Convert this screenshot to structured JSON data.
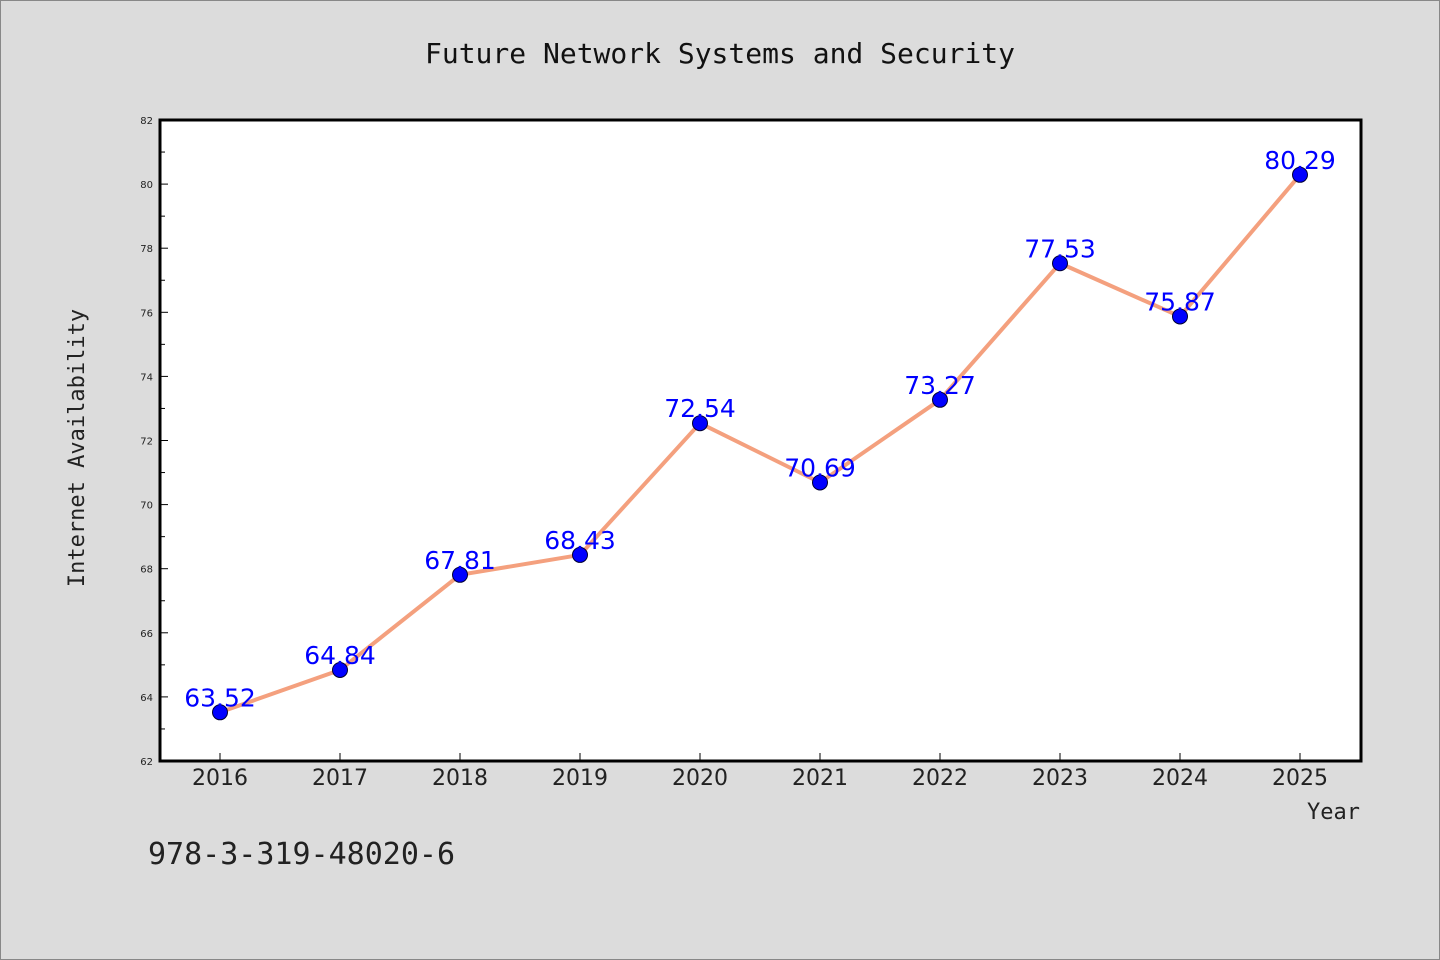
{
  "chart_data": {
    "type": "line",
    "title": "Future Network Systems and Security",
    "xlabel": "Year",
    "ylabel": "Internet Availability",
    "categories": [
      "2016",
      "2017",
      "2018",
      "2019",
      "2020",
      "2021",
      "2022",
      "2023",
      "2024",
      "2025"
    ],
    "series": [
      {
        "values": [
          63.52,
          64.84,
          67.81,
          68.43,
          72.54,
          70.69,
          73.27,
          77.53,
          75.87,
          80.29
        ]
      }
    ],
    "data_labels": [
      "63.52",
      "64.84",
      "67.81",
      "68.43",
      "72.54",
      "70.69",
      "73.27",
      "77.53",
      "75.87",
      "80.29"
    ],
    "ylim": [
      62,
      82
    ],
    "yticks": [
      "62",
      "64",
      "66",
      "68",
      "70",
      "72",
      "74",
      "76",
      "78",
      "80",
      "82"
    ],
    "grid": false,
    "colors": {
      "line": "#f4a07e",
      "marker": "#0000ff",
      "label": "#0000ff",
      "background": "#dcdcdc",
      "plot_bg": "#ffffff"
    }
  },
  "footer": {
    "isbn": "978-3-319-48020-6"
  }
}
